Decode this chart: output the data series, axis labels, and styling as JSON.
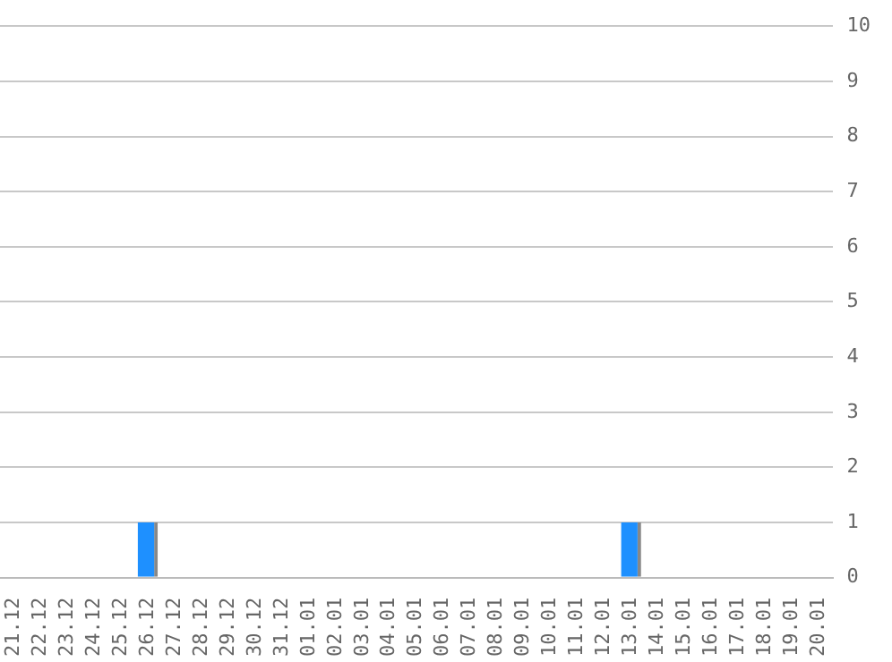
{
  "chart_data": {
    "type": "bar",
    "categories": [
      "21.12",
      "22.12",
      "23.12",
      "24.12",
      "25.12",
      "26.12",
      "27.12",
      "28.12",
      "29.12",
      "30.12",
      "31.12",
      "01.01",
      "02.01",
      "03.01",
      "04.01",
      "05.01",
      "06.01",
      "07.01",
      "08.01",
      "09.01",
      "10.01",
      "11.01",
      "12.01",
      "13.01",
      "14.01",
      "15.01",
      "16.01",
      "17.01",
      "18.01",
      "19.01",
      "20.01"
    ],
    "values": [
      0,
      0,
      0,
      0,
      0,
      1,
      0,
      0,
      0,
      0,
      0,
      0,
      0,
      0,
      0,
      0,
      0,
      0,
      0,
      0,
      0,
      0,
      0,
      1,
      0,
      0,
      0,
      0,
      0,
      0,
      0
    ],
    "color": "#1e90ff",
    "ylim": [
      0,
      10
    ],
    "yticks": [
      0,
      1,
      2,
      3,
      4,
      5,
      6,
      7,
      8,
      9,
      10
    ],
    "grid": "y",
    "legend": false
  }
}
